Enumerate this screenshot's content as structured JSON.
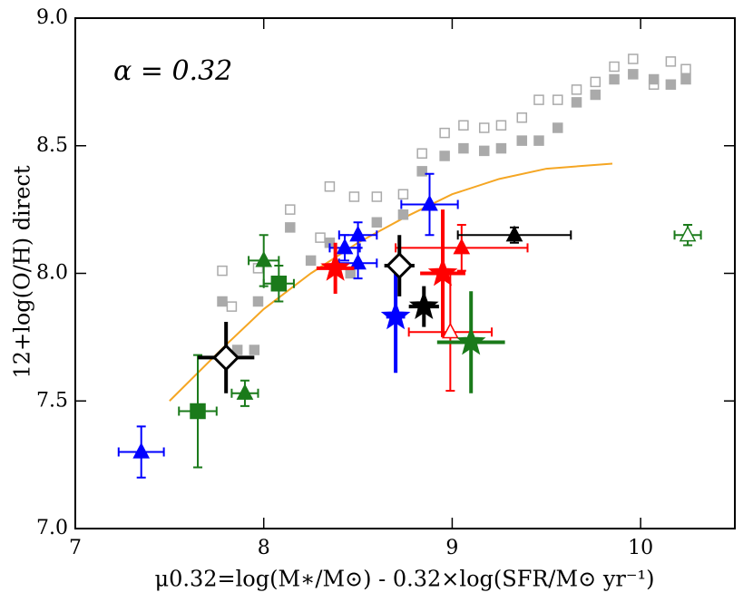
{
  "chart_data": {
    "type": "scatter",
    "annotation": "α = 0.32",
    "xlabel": "μ0.32=log(M∗/M⊙) - 0.32×log(SFR/M⊙ yr⁻¹)",
    "ylabel": "12+log(O/H) direct",
    "xlim": [
      7,
      10.5
    ],
    "ylim": [
      7,
      9
    ],
    "xticks": [
      7,
      8,
      9,
      10
    ],
    "yticks": [
      {
        "value": 7,
        "label": "7.0"
      },
      {
        "value": 7.5,
        "label": "7.5"
      },
      {
        "value": 8,
        "label": "8.0"
      },
      {
        "value": 8.5,
        "label": "8.5"
      },
      {
        "value": 9,
        "label": "9.0"
      }
    ],
    "line": {
      "color": "#f5a623",
      "x": [
        7.5,
        7.8,
        8.0,
        8.25,
        8.5,
        8.75,
        9.0,
        9.25,
        9.5,
        9.85
      ],
      "y": [
        7.5,
        7.72,
        7.86,
        8.0,
        8.12,
        8.22,
        8.31,
        8.37,
        8.41,
        8.43
      ]
    },
    "series": [
      {
        "color": "#aaaaaa",
        "marker": "square",
        "filled": false,
        "x": [
          7.78,
          7.83,
          7.97,
          8.14,
          8.3,
          8.35,
          8.48,
          8.6,
          8.74,
          8.84,
          8.96,
          9.06,
          9.17,
          9.26,
          9.37,
          9.46,
          9.56,
          9.66,
          9.76,
          9.86,
          9.96,
          10.07,
          10.16,
          10.24
        ],
        "y": [
          8.01,
          7.87,
          8.02,
          8.25,
          8.14,
          8.34,
          8.3,
          8.3,
          8.31,
          8.47,
          8.55,
          8.58,
          8.57,
          8.58,
          8.61,
          8.68,
          8.68,
          8.72,
          8.75,
          8.81,
          8.84,
          8.74,
          8.83,
          8.8
        ]
      },
      {
        "color": "#aaaaaa",
        "marker": "square",
        "filled": true,
        "x": [
          7.78,
          7.86,
          7.95,
          7.97,
          8.14,
          8.25,
          8.35,
          8.46,
          8.6,
          8.74,
          8.84,
          8.96,
          9.06,
          9.17,
          9.26,
          9.37,
          9.46,
          9.56,
          9.66,
          9.76,
          9.86,
          9.96,
          10.07,
          10.16,
          10.24
        ],
        "y": [
          7.89,
          7.7,
          7.7,
          7.89,
          8.18,
          8.05,
          8.12,
          8.0,
          8.2,
          8.23,
          8.4,
          8.46,
          8.49,
          8.48,
          8.49,
          8.52,
          8.52,
          8.57,
          8.67,
          8.7,
          8.76,
          8.78,
          8.76,
          8.74,
          8.76
        ]
      },
      {
        "color": "#0000ff",
        "marker": "triangle",
        "filled": true,
        "x": [
          7.35,
          8.43,
          8.5,
          8.5,
          8.88
        ],
        "y": [
          7.3,
          8.1,
          8.15,
          8.04,
          8.27
        ],
        "xerr": [
          0.12,
          0.08,
          0.1,
          0.1,
          0.15
        ],
        "yerr": [
          0.1,
          0.05,
          0.05,
          0.06,
          0.12
        ]
      },
      {
        "color": "#0000ff",
        "marker": "star",
        "filled": true,
        "x": [
          8.7
        ],
        "y": [
          7.83
        ],
        "xerr": [
          0.05
        ],
        "yerr": [
          0.22
        ]
      },
      {
        "color": "#ff0000",
        "marker": "star",
        "filled": true,
        "x": [
          8.38,
          8.95
        ],
        "y": [
          8.02,
          8.0
        ],
        "xerr": [
          0.1,
          0.12
        ],
        "yerr": [
          0.1,
          0.25
        ]
      },
      {
        "color": "#ff0000",
        "marker": "triangle",
        "filled": true,
        "x": [
          9.05
        ],
        "y": [
          8.1
        ],
        "xerr": [
          0.35
        ],
        "yerr": [
          0.09
        ]
      },
      {
        "color": "#ff0000",
        "marker": "triangle",
        "filled": false,
        "x": [
          8.99
        ],
        "y": [
          7.77
        ],
        "xerr": [
          0.22
        ],
        "yerr": [
          0.23
        ]
      },
      {
        "color": "#1a7a1a",
        "marker": "triangle",
        "filled": true,
        "x": [
          8.0,
          7.9
        ],
        "y": [
          8.05,
          7.53
        ],
        "xerr": [
          0.08,
          0.07
        ],
        "yerr": [
          0.1,
          0.05
        ]
      },
      {
        "color": "#1a7a1a",
        "marker": "square",
        "filled": true,
        "x": [
          8.08,
          7.65
        ],
        "y": [
          7.96,
          7.46
        ],
        "xerr": [
          0.08,
          0.1
        ],
        "yerr": [
          0.07,
          0.22
        ]
      },
      {
        "color": "#1a7a1a",
        "marker": "star",
        "filled": true,
        "x": [
          9.1
        ],
        "y": [
          7.73
        ],
        "xerr": [
          0.18
        ],
        "yerr": [
          0.2
        ]
      },
      {
        "color": "#1a7a1a",
        "marker": "triangle",
        "filled": false,
        "x": [
          10.25
        ],
        "y": [
          8.15
        ],
        "xerr": [
          0.07
        ],
        "yerr": [
          0.04
        ]
      },
      {
        "color": "#000000",
        "marker": "diamond",
        "filled": false,
        "x": [
          7.8,
          8.72
        ],
        "y": [
          7.67,
          8.03
        ],
        "xerr": [
          0.15,
          0.08
        ],
        "yerr": [
          0.14,
          0.12
        ]
      },
      {
        "color": "#000000",
        "marker": "star",
        "filled": true,
        "x": [
          8.85
        ],
        "y": [
          7.87
        ],
        "xerr": [
          0.08
        ],
        "yerr": [
          0.08
        ]
      },
      {
        "color": "#000000",
        "marker": "triangle",
        "filled": true,
        "x": [
          9.33
        ],
        "y": [
          8.15
        ],
        "xerr": [
          0.3
        ],
        "yerr": [
          0.03
        ]
      }
    ]
  }
}
